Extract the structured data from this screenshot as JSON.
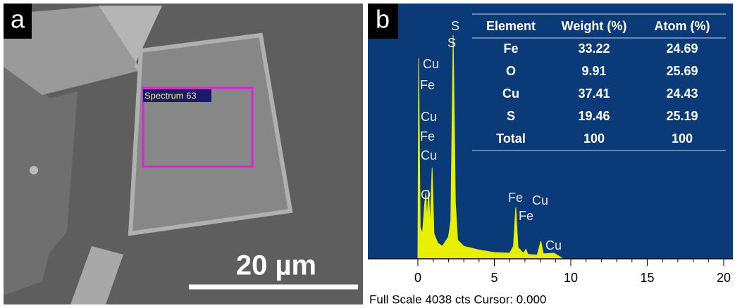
{
  "panel_a": {
    "label": "a",
    "spectrum_label": "Spectrum 63",
    "scale_bar": "20 µm"
  },
  "panel_b": {
    "label": "b",
    "status": "Full Scale 4038 cts Cursor: 0.000",
    "table": {
      "header": [
        "Element",
        "Weight (%)",
        "Atom (%)"
      ],
      "rows": [
        [
          "Fe",
          "33.22",
          "24.69"
        ],
        [
          "O",
          "9.91",
          "25.69"
        ],
        [
          "Cu",
          "37.41",
          "24.43"
        ],
        [
          "S",
          "19.46",
          "25.19"
        ],
        [
          "Total",
          "100",
          "100"
        ]
      ]
    }
  },
  "chart_data": {
    "type": "area",
    "color": "#e8f000",
    "x": [
      0,
      0.05,
      0.15,
      0.3,
      0.45,
      0.52,
      0.6,
      0.7,
      0.8,
      0.93,
      1.05,
      1.3,
      1.6,
      2.0,
      2.15,
      2.31,
      2.45,
      2.6,
      3.0,
      3.5,
      4.0,
      5.0,
      6.0,
      6.25,
      6.4,
      6.55,
      6.9,
      7.06,
      7.2,
      7.8,
      8.04,
      8.2,
      8.9,
      9.5
    ],
    "values": [
      0,
      3200,
      500,
      400,
      900,
      1050,
      600,
      1100,
      500,
      1450,
      400,
      250,
      200,
      350,
      600,
      3570,
      900,
      300,
      200,
      170,
      140,
      100,
      90,
      200,
      820,
      180,
      90,
      150,
      70,
      60,
      280,
      80,
      90,
      0
    ],
    "xlim": [
      0,
      20
    ],
    "ylim": [
      0,
      4038
    ],
    "xticks": [
      0,
      5,
      10,
      15,
      20
    ],
    "peak_labels": [
      "S",
      "S",
      "Cu",
      "Fe",
      "Cu",
      "Fe",
      "Cu",
      "O",
      "Fe",
      "Cu",
      "Fe",
      "Cu"
    ]
  }
}
